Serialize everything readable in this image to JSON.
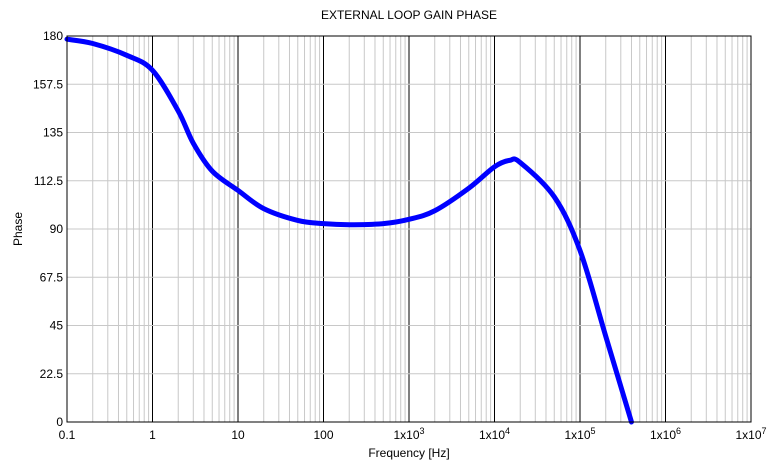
{
  "chart_data": {
    "type": "line",
    "title": "EXTERNAL LOOP GAIN PHASE",
    "xlabel": "Frequency [Hz]",
    "ylabel": "Phase",
    "xscale": "log",
    "xlim": [
      0.1,
      10000000
    ],
    "ylim": [
      0,
      180
    ],
    "x_ticks": [
      {
        "base": "0.1",
        "exp": ""
      },
      {
        "base": "1",
        "exp": ""
      },
      {
        "base": "10",
        "exp": ""
      },
      {
        "base": "100",
        "exp": ""
      },
      {
        "base": "1x10",
        "exp": "3"
      },
      {
        "base": "1x10",
        "exp": "4"
      },
      {
        "base": "1x10",
        "exp": "5"
      },
      {
        "base": "1x10",
        "exp": "6"
      },
      {
        "base": "1x10",
        "exp": "7"
      }
    ],
    "y_ticks": [
      "0",
      "22.5",
      "45",
      "67.5",
      "90",
      "112.5",
      "135",
      "157.5",
      "180"
    ],
    "grid": true,
    "series": [
      {
        "color": "#0000ff",
        "x": [
          0.1,
          0.2,
          0.5,
          1,
          2,
          3,
          5,
          10,
          20,
          50,
          100,
          200,
          500,
          1000,
          2000,
          5000,
          10000,
          15000,
          20000,
          50000,
          100000,
          200000,
          400000
        ],
        "y": [
          178.5,
          176.5,
          171,
          164,
          145,
          130,
          117,
          108,
          99.5,
          94,
          92.5,
          92,
          92.5,
          94.5,
          98.5,
          109,
          119,
          122,
          121,
          105,
          80,
          40,
          0
        ]
      }
    ]
  }
}
